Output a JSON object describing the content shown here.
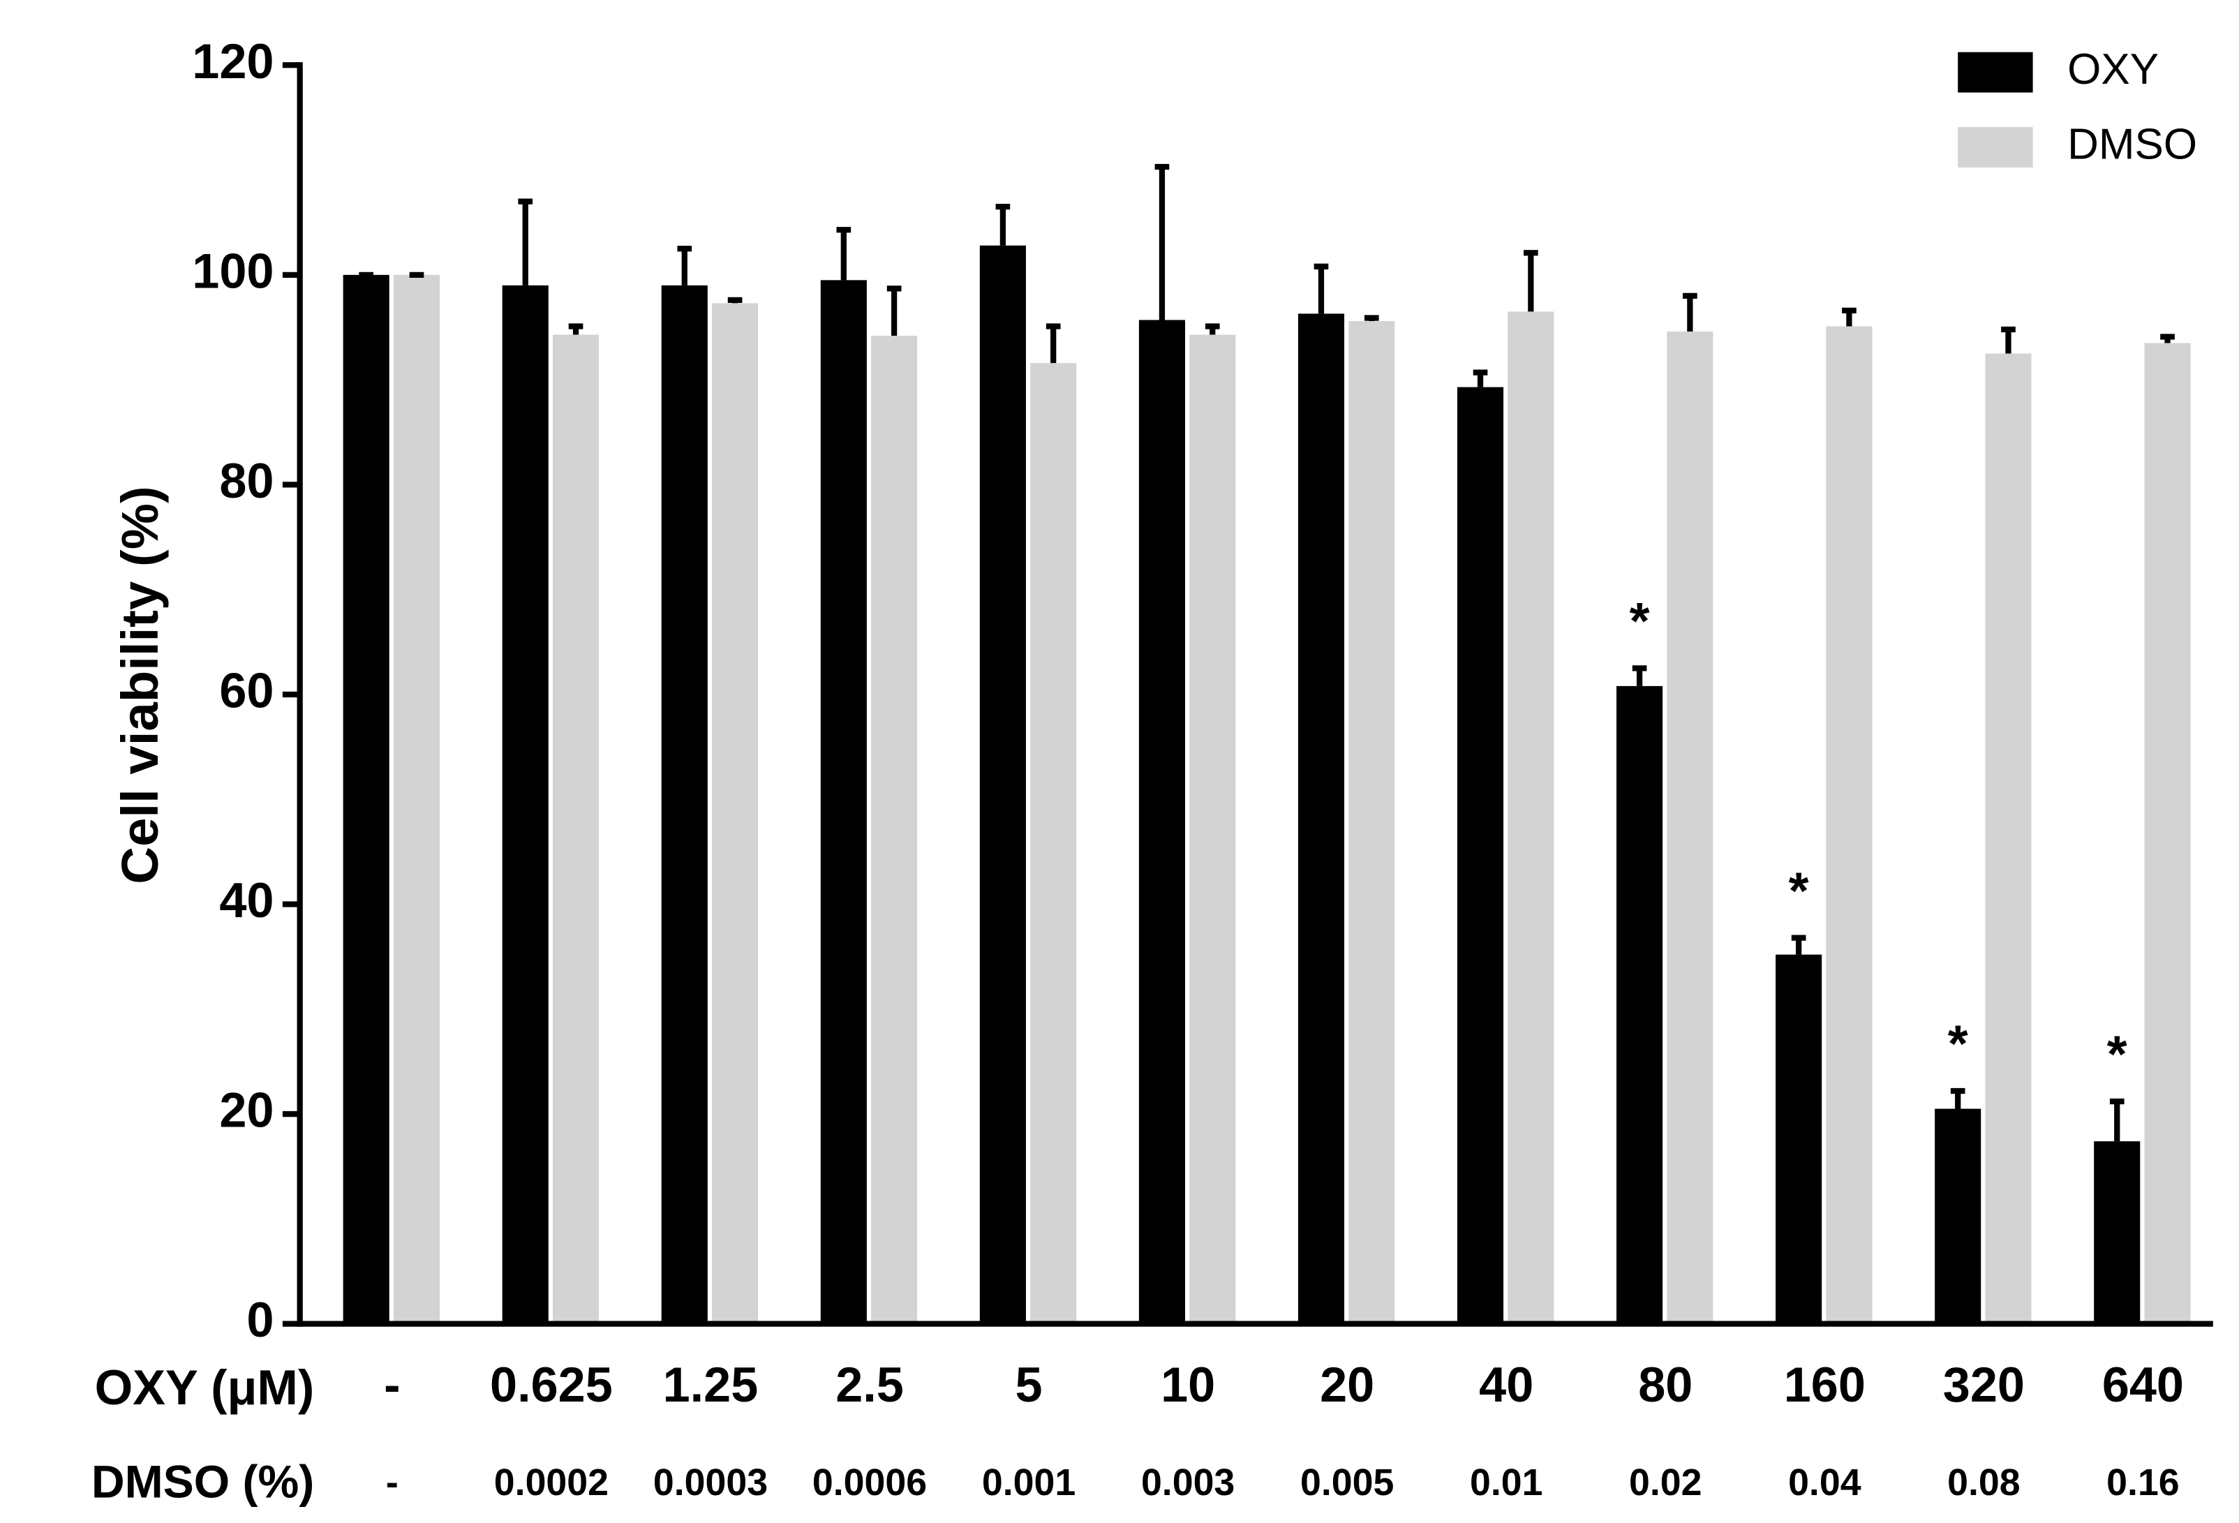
{
  "chart_data": {
    "type": "bar",
    "y_label": "Cell viability (%)",
    "x_row_labels": [
      "OXY (μM)",
      "DMSO (%)"
    ],
    "categories": [
      "-",
      "0.625",
      "1.25",
      "2.5",
      "5",
      "10",
      "20",
      "40",
      "80",
      "160",
      "320",
      "640"
    ],
    "categories_2": [
      "-",
      "0.0002",
      "0.0003",
      "0.0006",
      "0.001",
      "0.003",
      "0.005",
      "0.01",
      "0.02",
      "0.04",
      "0.08",
      "0.16"
    ],
    "series": [
      {
        "name": "OXY",
        "color": "#000000",
        "values": [
          100,
          99,
          99,
          99.5,
          102.8,
          95.7,
          96.3,
          89.3,
          60.8,
          35.2,
          20.5,
          17.4
        ],
        "errors": [
          0,
          8,
          3.5,
          4.8,
          3.7,
          14.6,
          4.5,
          1.4,
          1.7,
          1.6,
          1.7,
          3.8
        ]
      },
      {
        "name": "DMSO",
        "color": "#d3d3d3",
        "values": [
          100,
          94.3,
          97.3,
          94.2,
          91.6,
          94.3,
          95.6,
          96.5,
          94.6,
          95.1,
          92.5,
          93.5
        ],
        "errors": [
          0,
          0.8,
          0.3,
          4.5,
          3.5,
          0.8,
          0.3,
          5.6,
          3.4,
          1.5,
          2.3,
          0.6
        ]
      }
    ],
    "significance": [
      null,
      null,
      null,
      null,
      null,
      null,
      null,
      null,
      "*",
      "*",
      "*",
      "*"
    ],
    "ylim": [
      0,
      120
    ],
    "yticks": [
      0,
      20,
      40,
      60,
      80,
      100,
      120
    ],
    "legend": "upper right",
    "grid": false
  }
}
